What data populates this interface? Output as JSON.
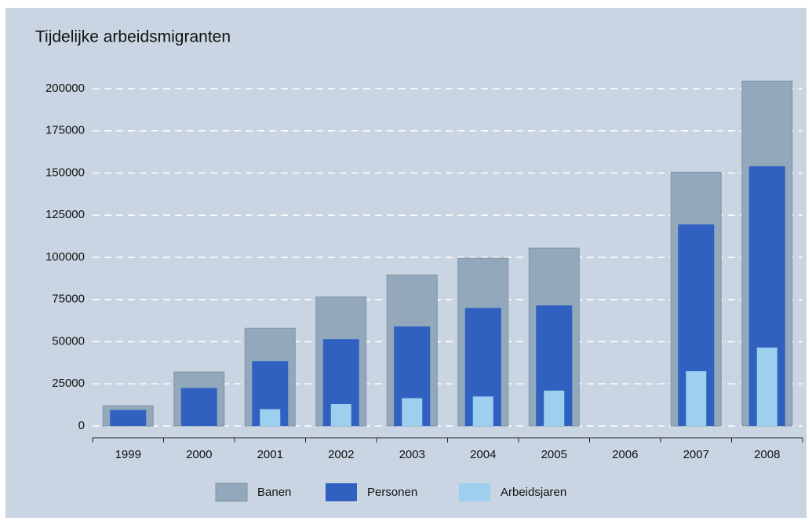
{
  "chart_data": {
    "type": "bar",
    "title": "Tijdelijke arbeidsmigranten",
    "categories": [
      "1999",
      "2000",
      "2001",
      "2002",
      "2003",
      "2004",
      "2005",
      "2006",
      "2007",
      "2008"
    ],
    "series": [
      {
        "name": "Banen",
        "color": "#94a8bb",
        "values": [
          12000,
          32000,
          58000,
          76500,
          89500,
          99500,
          105500,
          null,
          150500,
          204500
        ]
      },
      {
        "name": "Personen",
        "color": "#3060c0",
        "values": [
          9500,
          22500,
          38500,
          51500,
          59000,
          70000,
          71500,
          null,
          119500,
          154000
        ]
      },
      {
        "name": "Arbeidsjaren",
        "color": "#9dcfee",
        "values": [
          null,
          null,
          10000,
          13000,
          16500,
          17500,
          21000,
          null,
          32500,
          46500
        ]
      }
    ],
    "ylim": [
      0,
      200000
    ],
    "yticks": [
      0,
      25000,
      50000,
      75000,
      100000,
      125000,
      150000,
      175000,
      200000
    ],
    "grid": true,
    "legend": "bottom"
  }
}
